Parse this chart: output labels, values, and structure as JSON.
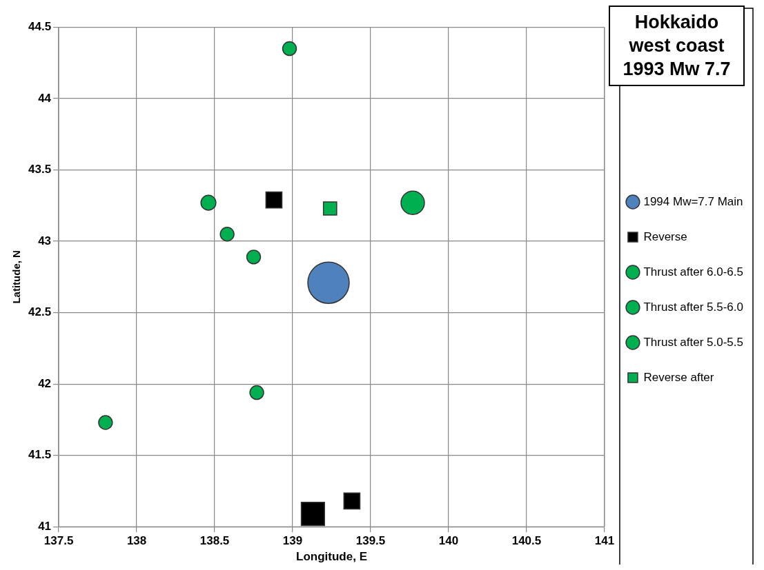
{
  "chart_data": {
    "type": "bubble",
    "title": "Hokkaido west coast 1993 Mw 7.7",
    "xlabel": "Longitude, E",
    "ylabel": "Latitude, N",
    "xlim": [
      137.5,
      141
    ],
    "xticks": [
      137.5,
      138,
      138.5,
      139,
      139.5,
      140,
      140.5,
      141
    ],
    "ylim": [
      41,
      44.5
    ],
    "yticks": [
      41,
      41.5,
      42,
      42.5,
      43,
      43.5,
      44,
      44.5
    ],
    "grid": true,
    "legend": "right",
    "series": [
      {
        "name": "1994 Mw=7.7 Main",
        "color": "#4f81bd",
        "marker": "circle",
        "x": [
          139.23
        ],
        "values": [
          42.71
        ],
        "sizes": [
          1
        ]
      },
      {
        "name": "Reverse",
        "color": "#000000",
        "marker": "square",
        "x": [
          138.88,
          139.13,
          139.38
        ],
        "values": [
          43.29,
          41.09,
          41.18
        ],
        "sizes": [
          0.19,
          0.4,
          0.19
        ]
      },
      {
        "name": "Thrust after 6.0-6.5",
        "color": "#00b050",
        "marker": "circle",
        "x": [
          139.77
        ],
        "values": [
          43.27
        ],
        "sizes": [
          0.32
        ]
      },
      {
        "name": "Thrust after 5.5-6.0",
        "color": "#00b050",
        "marker": "circle",
        "x": [
          138.46
        ],
        "values": [
          43.27
        ],
        "sizes": [
          0.13
        ]
      },
      {
        "name": "Thrust after 5.0-5.5",
        "color": "#00b050",
        "marker": "circle",
        "x": [
          138.98,
          138.58,
          138.75,
          138.77,
          137.8
        ],
        "values": [
          44.35,
          43.05,
          42.89,
          41.94,
          41.73
        ],
        "sizes": [
          0.11,
          0.11,
          0.11,
          0.11,
          0.11
        ]
      },
      {
        "name": "Reverse after",
        "color": "#00b050",
        "marker": "square",
        "x": [
          139.24
        ],
        "values": [
          43.23
        ],
        "sizes": [
          0.13
        ]
      }
    ]
  }
}
